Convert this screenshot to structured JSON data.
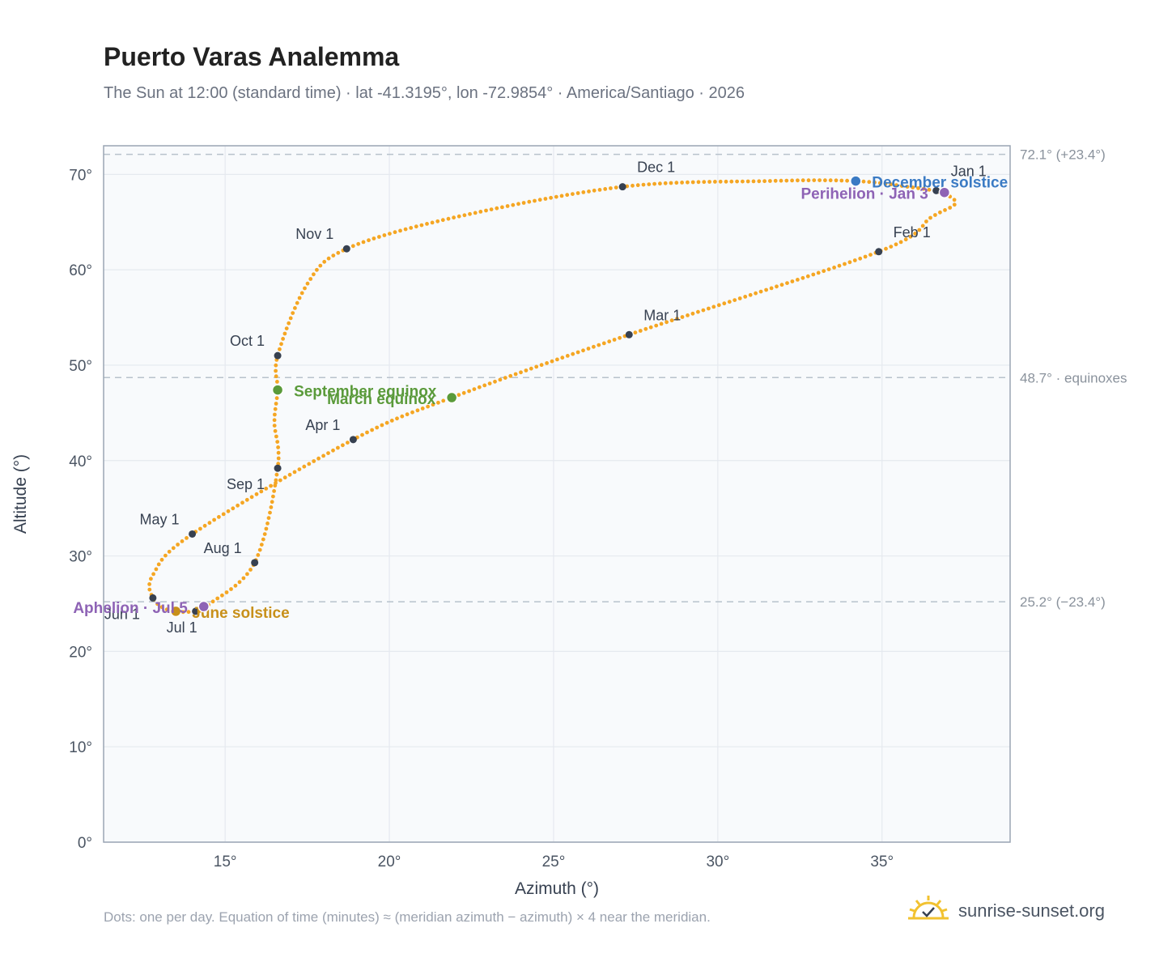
{
  "header": {
    "title": "Puerto Varas Analemma",
    "subtitle": "The Sun at 12:00 (standard time) · lat -41.3195°, lon -72.9854° · America/Santiago · 2026"
  },
  "footer": {
    "note": "Dots: one per day. Equation of time (minutes) ≈ (meridian azimuth − azimuth) × 4 near the meridian.",
    "brand": "sunrise-sunset.org"
  },
  "icons": {
    "brand_logo": "sun-check-icon"
  },
  "colors": {
    "path": "#f5a623",
    "month_marker": "#374151",
    "equinox": "#5a9a3a",
    "december_solstice": "#3b7bc4",
    "june_solstice": "#c8901a",
    "apsis": "#8e63b5",
    "reference_line": "#b8c2cc",
    "plot_background": "#f8fafc",
    "frame": "#9aa5b4"
  },
  "chart_data": {
    "type": "scatter",
    "title": "Puerto Varas Analemma",
    "xlabel": "Azimuth (°)",
    "ylabel": "Altitude (°)",
    "xlim": [
      11.3,
      38.9
    ],
    "ylim": [
      0,
      73
    ],
    "x_ticks": [
      15,
      20,
      25,
      30,
      35
    ],
    "x_tick_labels": [
      "15°",
      "20°",
      "25°",
      "30°",
      "35°"
    ],
    "y_ticks": [
      0,
      10,
      20,
      30,
      40,
      50,
      60,
      70
    ],
    "y_tick_labels": [
      "0°",
      "10°",
      "20°",
      "30°",
      "40°",
      "50°",
      "60°",
      "70°"
    ],
    "grid": true,
    "path_control_points": [
      {
        "x": 36.6,
        "y": 68.3
      },
      {
        "x": 37.1,
        "y": 67.6
      },
      {
        "x": 37.2,
        "y": 66.8
      },
      {
        "x": 36.5,
        "y": 65.5
      },
      {
        "x": 34.9,
        "y": 61.9
      },
      {
        "x": 27.3,
        "y": 53.2
      },
      {
        "x": 21.9,
        "y": 46.6
      },
      {
        "x": 18.9,
        "y": 42.2
      },
      {
        "x": 14.0,
        "y": 32.3
      },
      {
        "x": 12.8,
        "y": 28.0
      },
      {
        "x": 12.8,
        "y": 25.6
      },
      {
        "x": 13.3,
        "y": 24.3
      },
      {
        "x": 14.1,
        "y": 24.2
      },
      {
        "x": 14.5,
        "y": 24.9
      },
      {
        "x": 15.9,
        "y": 29.3
      },
      {
        "x": 16.6,
        "y": 39.2
      },
      {
        "x": 16.5,
        "y": 44.0
      },
      {
        "x": 16.6,
        "y": 47.4
      },
      {
        "x": 16.6,
        "y": 51.0
      },
      {
        "x": 17.5,
        "y": 58.5
      },
      {
        "x": 18.7,
        "y": 62.2
      },
      {
        "x": 22.0,
        "y": 65.5
      },
      {
        "x": 27.1,
        "y": 68.7
      },
      {
        "x": 31.5,
        "y": 69.3
      },
      {
        "x": 34.2,
        "y": 69.3
      },
      {
        "x": 36.0,
        "y": 68.6
      },
      {
        "x": 36.6,
        "y": 68.3
      }
    ],
    "month_markers": [
      {
        "label": "Jan 1",
        "x": 36.65,
        "y": 68.3,
        "anchor": "right"
      },
      {
        "label": "Feb 1",
        "x": 34.9,
        "y": 61.9,
        "anchor": "right"
      },
      {
        "label": "Mar 1",
        "x": 27.3,
        "y": 53.2,
        "anchor": "right"
      },
      {
        "label": "Apr 1",
        "x": 18.9,
        "y": 42.2,
        "anchor": "left"
      },
      {
        "label": "May 1",
        "x": 14.0,
        "y": 32.3,
        "anchor": "left"
      },
      {
        "label": "Jun 1",
        "x": 12.8,
        "y": 25.6,
        "anchor": "below-left"
      },
      {
        "label": "Jul 1",
        "x": 14.1,
        "y": 24.2,
        "anchor": "below"
      },
      {
        "label": "Aug 1",
        "x": 15.9,
        "y": 29.3,
        "anchor": "left"
      },
      {
        "label": "Sep 1",
        "x": 16.6,
        "y": 39.2,
        "anchor": "below-left"
      },
      {
        "label": "Oct 1",
        "x": 16.6,
        "y": 51.0,
        "anchor": "left"
      },
      {
        "label": "Nov 1",
        "x": 18.7,
        "y": 62.2,
        "anchor": "left"
      },
      {
        "label": "Dec 1",
        "x": 27.1,
        "y": 68.7,
        "anchor": "right"
      }
    ],
    "events": [
      {
        "label": "December solstice",
        "x": 34.2,
        "y": 69.3,
        "color": "#3b7bc4",
        "anchor": "right"
      },
      {
        "label": "Perihelion · Jan 3",
        "x": 36.9,
        "y": 68.1,
        "color": "#8e63b5",
        "anchor": "left"
      },
      {
        "label": "March equinox",
        "x": 21.9,
        "y": 46.6,
        "color": "#5a9a3a",
        "anchor": "left"
      },
      {
        "label": "September equinox",
        "x": 16.6,
        "y": 47.4,
        "color": "#5a9a3a",
        "anchor": "right"
      },
      {
        "label": "June solstice",
        "x": 13.5,
        "y": 24.2,
        "color": "#c8901a",
        "anchor": "right"
      },
      {
        "label": "Aphelion · Jul 5",
        "x": 14.35,
        "y": 24.7,
        "color": "#8e63b5",
        "anchor": "left"
      }
    ],
    "reference_lines": [
      {
        "y": 72.1,
        "label": "72.1° (+23.4°)"
      },
      {
        "y": 48.7,
        "label": "48.7° · equinoxes"
      },
      {
        "y": 25.2,
        "label": "25.2° (−23.4°)"
      }
    ]
  }
}
